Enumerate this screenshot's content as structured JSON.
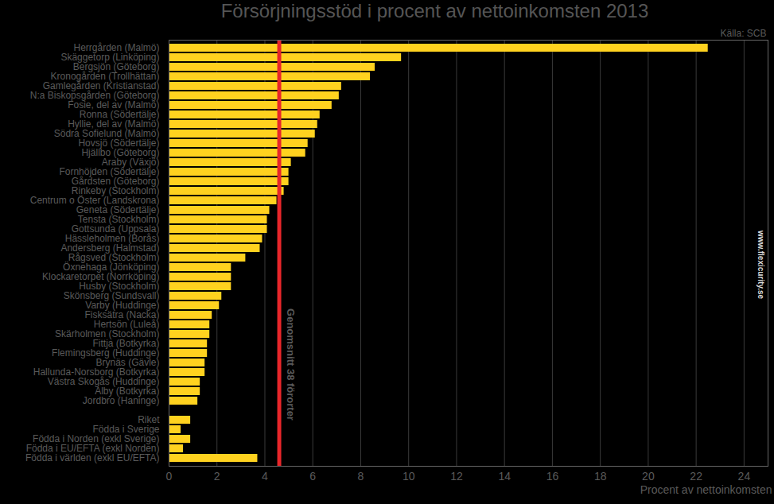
{
  "chart_data": {
    "type": "bar",
    "orientation": "horizontal",
    "title": "Försörjningsstöd i procent av nettoinkomsten 2013",
    "source": "Källa: SCB",
    "watermark": "www.flexicurity.se",
    "x_label": "Procent av nettoinkomsten",
    "categories": [
      "Herrgården (Malmö)",
      "Skäggetorp (Linköping)",
      "Bergsjön (Göteborg)",
      "Kronogården (Trollhättan)",
      "Gamlegården (Kristianstad)",
      "N:a Biskopsgården (Göteborg)",
      "Fosie, del av (Malmö)",
      "Ronna (Södertälje)",
      "Hyllie, del av (Malmö)",
      "Södra Sofielund (Malmö)",
      "Hovsjö (Södertälje)",
      "Hjällbo (Göteborg)",
      "Araby (Växjö)",
      "Fornhöjden (Södertälje)",
      "Gårdsten (Göteborg)",
      "Rinkeby (Stockholm)",
      "Centrum o Öster (Landskrona)",
      "Geneta (Södertälje)",
      "Tensta (Stockholm)",
      "Gottsunda (Uppsala)",
      "Hässleholmen (Borås)",
      "Andersberg (Halmstad)",
      "Rågsved (Stockholm)",
      "Öxnehaga (Jönköping)",
      "Klockaretorpet (Norrköping)",
      "Husby (Stockholm)",
      "Skönsberg (Sundsvall)",
      "Varby (Huddinge)",
      "Fisksätra (Nacka)",
      "Hertsön (Luleå)",
      "Skärholmen (Stockholm)",
      "Fittja (Botkyrka)",
      "Flemingsberg (Huddinge)",
      "Brynäs (Gävle)",
      "Hallunda-Norsborg (Botkyrka)",
      "Västra Skogås (Huddinge)",
      "Alby (Botkyrka)",
      "Jordbro (Haninge)",
      null,
      "Riket",
      "Födda i Sverige",
      "Födda i Norden (exkl Sverige)",
      "Födda i EU/EFTA (exkl Norden)",
      "Födda i världen (exkl EU/EFTA)"
    ],
    "values": [
      22.5,
      9.7,
      8.6,
      8.4,
      7.2,
      7.1,
      6.8,
      6.3,
      6.2,
      6.1,
      5.8,
      5.7,
      5.1,
      5.0,
      5.0,
      4.8,
      4.5,
      4.2,
      4.1,
      4.1,
      3.9,
      3.8,
      3.2,
      2.6,
      2.6,
      2.6,
      2.2,
      2.1,
      1.8,
      1.7,
      1.7,
      1.6,
      1.6,
      1.5,
      1.5,
      1.3,
      1.3,
      1.2,
      null,
      0.9,
      0.5,
      0.9,
      0.6,
      3.7
    ],
    "color": "#ffd21f",
    "xlim": [
      0,
      25
    ],
    "xticks": [
      0,
      2,
      4,
      6,
      8,
      10,
      12,
      14,
      16,
      18,
      20,
      22,
      24
    ],
    "grid": true,
    "annotations": [
      {
        "text": "Genomsnitt 38 förorter",
        "x": 4.6,
        "color": "#e8262a"
      }
    ]
  }
}
